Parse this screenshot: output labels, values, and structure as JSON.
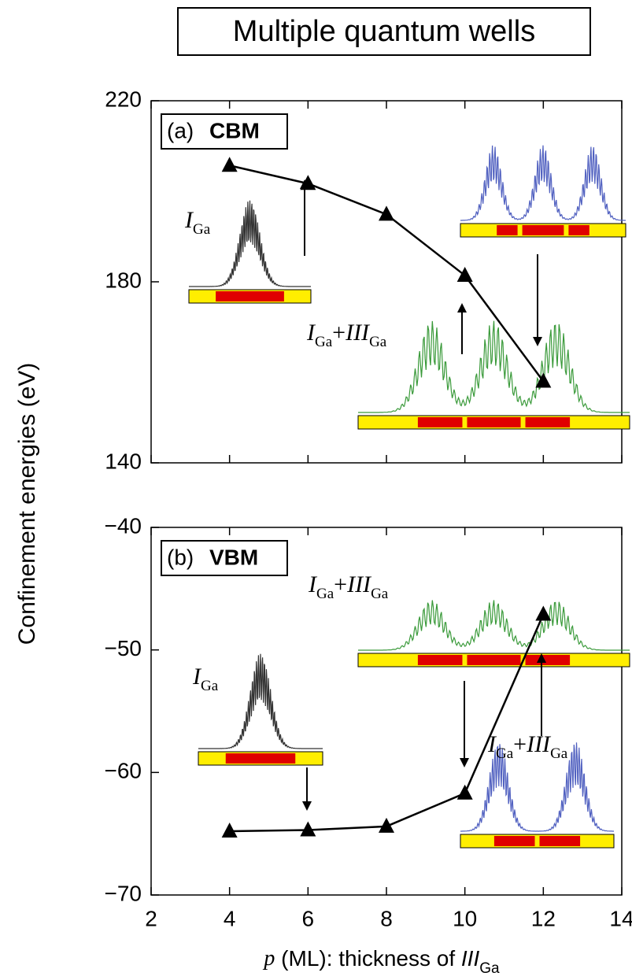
{
  "chart_data": [
    {
      "type": "line",
      "title": "Multiple quantum wells",
      "panel_label": "(a)",
      "panel_name": "CBM",
      "ylabel": "Confinement energies (eV)",
      "x": [
        4,
        6,
        8,
        10,
        12
      ],
      "series": [
        {
          "color": "#000000",
          "marker": "triangle",
          "values": [
            205.7,
            201.7,
            194.9,
            181.4,
            158
          ]
        }
      ],
      "xlim": [
        2,
        14
      ],
      "xticks": [
        2,
        4,
        6,
        8,
        10,
        12,
        14
      ],
      "show_xtick_labels": false,
      "ylim": [
        140,
        220
      ],
      "yticks": [
        140,
        180,
        220
      ],
      "annotations": [
        [
          {
            "text": "I",
            "style": "italic"
          },
          {
            "text": "Ga",
            "style": "sub"
          }
        ],
        [
          {
            "text": "I",
            "style": "italic"
          },
          {
            "text": "Ga",
            "style": "sub"
          },
          {
            "text": "+",
            "style": "normal"
          },
          {
            "text": "III",
            "style": "italic"
          },
          {
            "text": "Ga",
            "style": "sub"
          }
        ]
      ]
    },
    {
      "type": "line",
      "panel_label": "(b)",
      "panel_name": "VBM",
      "xlabel": [
        {
          "text": "p",
          "style": "italic"
        },
        {
          "text": " (ML): thickness of ",
          "style": "normal"
        },
        {
          "text": "III",
          "style": "italic"
        },
        {
          "text": "Ga",
          "style": "sub"
        }
      ],
      "x": [
        4,
        6,
        8,
        10,
        12
      ],
      "series": [
        {
          "color": "#000000",
          "marker": "triangle",
          "values": [
            -64.8,
            -64.7,
            -64.4,
            -61.7,
            -47.1
          ]
        }
      ],
      "xlim": [
        2,
        14
      ],
      "xticks": [
        2,
        4,
        6,
        8,
        10,
        12,
        14
      ],
      "show_xtick_labels": true,
      "ylim": [
        -70,
        -40
      ],
      "yticks": [
        {
          "value": -70,
          "label": "−70"
        },
        {
          "value": -60,
          "label": "−60"
        },
        {
          "value": -50,
          "label": "−50"
        },
        {
          "value": -40,
          "label": "−40"
        }
      ],
      "annotations": [
        [
          {
            "text": "I",
            "style": "italic"
          },
          {
            "text": "Ga",
            "style": "sub"
          },
          {
            "text": "+",
            "style": "normal"
          },
          {
            "text": "III",
            "style": "italic"
          },
          {
            "text": "Ga",
            "style": "sub"
          }
        ],
        [
          {
            "text": "I",
            "style": "italic"
          },
          {
            "text": "Ga",
            "style": "sub"
          }
        ],
        [
          {
            "text": "I",
            "style": "italic"
          },
          {
            "text": "Ga",
            "style": "sub"
          },
          {
            "text": "+",
            "style": "normal"
          },
          {
            "text": "III",
            "style": "italic"
          },
          {
            "text": "Ga",
            "style": "sub"
          }
        ]
      ]
    }
  ]
}
